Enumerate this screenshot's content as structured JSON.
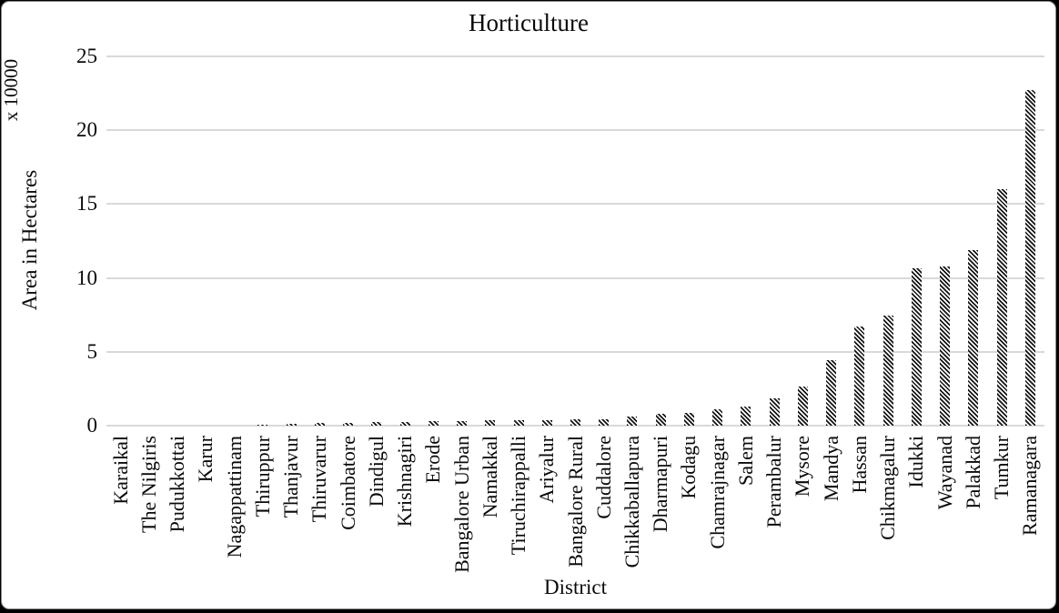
{
  "chart_data": {
    "type": "bar",
    "title": "Horticulture",
    "xlabel": "District",
    "ylabel": "Area in Hectares",
    "y_multiplier_label": "x 10000",
    "ylim": [
      0,
      25
    ],
    "yticks": [
      0,
      5,
      10,
      15,
      20,
      25
    ],
    "grid": true,
    "legend_position": "none",
    "bar_fill_style": "diagonal-hatch",
    "bar_color": "#141414",
    "gridline_color": "#d9d9d9",
    "background_color": "#ffffff",
    "categories": [
      "Karaikal",
      "The Nilgiris",
      "Pudukkottai",
      "Karur",
      "Nagappattinam",
      "Thiruppur",
      "Thanjavur",
      "Thiruvarur",
      "Coimbatore",
      "Dindigul",
      "Krishnagiri",
      "Erode",
      "Bangalore Urban",
      "Namakkal",
      "Tiruchirappalli",
      "Ariyalur",
      "Bangalore Rural",
      "Cuddalore",
      "Chikkaballapura",
      "Dharmapuri",
      "Kodagu",
      "Chamrajnagar",
      "Salem",
      "Perambalur",
      "Mysore",
      "Mandya",
      "Hassan",
      "Chikmagalur",
      "Idukki",
      "Wayanad",
      "Palakkad",
      "Tumkur",
      "Ramanagara"
    ],
    "values": [
      0.01,
      0.02,
      0.02,
      0.03,
      0.03,
      0.05,
      0.15,
      0.17,
      0.2,
      0.22,
      0.26,
      0.28,
      0.33,
      0.35,
      0.38,
      0.4,
      0.42,
      0.44,
      0.62,
      0.8,
      0.85,
      1.13,
      1.32,
      1.82,
      2.65,
      4.45,
      6.7,
      7.45,
      10.65,
      10.8,
      11.9,
      16.0,
      22.7
    ]
  }
}
